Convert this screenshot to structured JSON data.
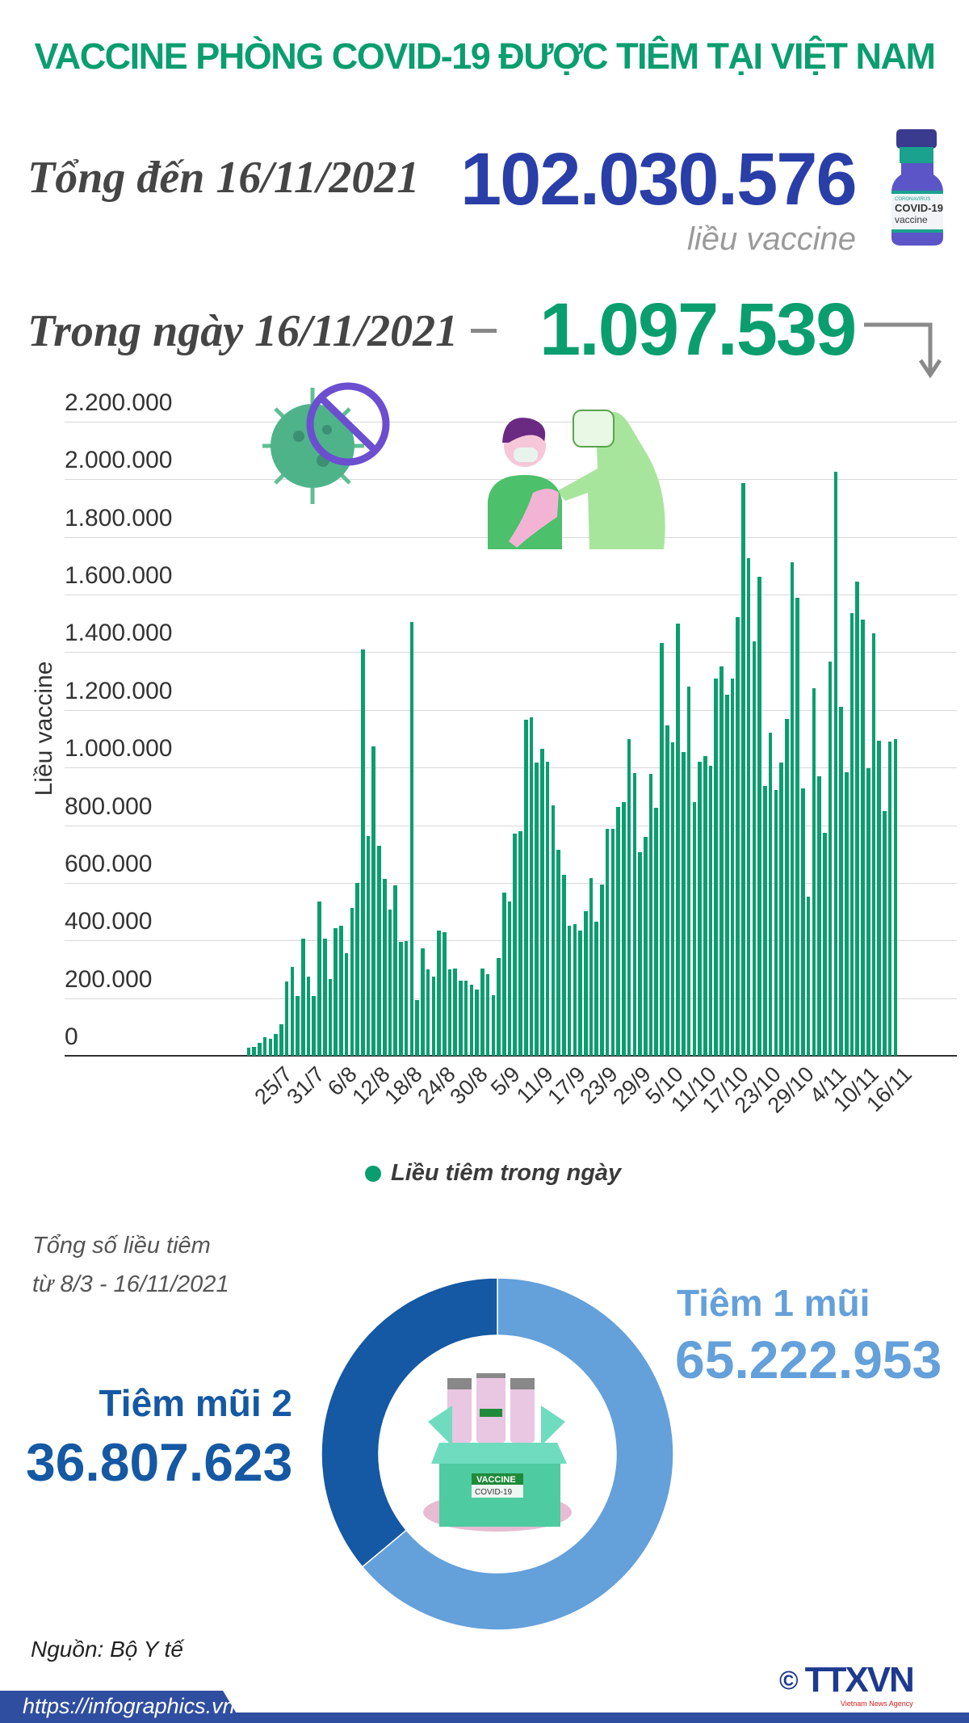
{
  "title": "VACCINE PHÒNG COVID-19 ĐƯỢC TIÊM TẠI VIỆT NAM",
  "total": {
    "label": "Tổng đến 16/11/2021",
    "value": "102.030.576",
    "unit": "liều vaccine"
  },
  "daily": {
    "label": "Trong ngày 16/11/2021",
    "value": "1.097.539"
  },
  "vial_label": {
    "line1": "CORONAVIRUS",
    "line2": "COVID-19",
    "line3": "vaccine"
  },
  "colors": {
    "green": "#0a9e6e",
    "blue_total": "#2a3ea8",
    "dose1": "#64a0da",
    "dose2": "#1558a3",
    "footer": "#2f4ea0"
  },
  "chart_data": [
    {
      "type": "bar",
      "ylabel": "Liều vaccine",
      "ylim": [
        0,
        2200000
      ],
      "yticks": [
        "0",
        "200.000",
        "400.000",
        "600.000",
        "800.000",
        "1.000.000",
        "1.200.000",
        "1.400.000",
        "1.600.000",
        "1.800.000",
        "2.000.000",
        "2.200.000"
      ],
      "ytick_values": [
        0,
        200000,
        400000,
        600000,
        800000,
        1000000,
        1200000,
        1400000,
        1600000,
        1800000,
        2000000,
        2200000
      ],
      "grid": true,
      "legend": "bottom",
      "xticks": [
        "25/7",
        "31/7",
        "6/8",
        "12/8",
        "18/8",
        "24/8",
        "30/8",
        "5/9",
        "11/9",
        "17/9",
        "23/9",
        "29/9",
        "5/10",
        "11/10",
        "17/10",
        "23/10",
        "29/10",
        "4/11",
        "10/11",
        "16/11"
      ],
      "categories": [
        "20/7",
        "21/7",
        "22/7",
        "23/7",
        "24/7",
        "25/7",
        "26/7",
        "27/7",
        "28/7",
        "29/7",
        "30/7",
        "31/7",
        "1/8",
        "2/8",
        "3/8",
        "4/8",
        "5/8",
        "6/8",
        "7/8",
        "8/8",
        "9/8",
        "10/8",
        "11/8",
        "12/8",
        "13/8",
        "14/8",
        "15/8",
        "16/8",
        "17/8",
        "18/8",
        "19/8",
        "20/8",
        "21/8",
        "22/8",
        "23/8",
        "24/8",
        "25/8",
        "26/8",
        "27/8",
        "28/8",
        "29/8",
        "30/8",
        "31/8",
        "1/9",
        "2/9",
        "3/9",
        "4/9",
        "5/9",
        "6/9",
        "7/9",
        "8/9",
        "9/9",
        "10/9",
        "11/9",
        "12/9",
        "13/9",
        "14/9",
        "15/9",
        "16/9",
        "17/9",
        "18/9",
        "19/9",
        "20/9",
        "21/9",
        "22/9",
        "23/9",
        "24/9",
        "25/9",
        "26/9",
        "27/9",
        "28/9",
        "29/9",
        "30/9",
        "1/10",
        "2/10",
        "3/10",
        "4/10",
        "5/10",
        "6/10",
        "7/10",
        "8/10",
        "9/10",
        "10/10",
        "11/10",
        "12/10",
        "13/10",
        "14/10",
        "15/10",
        "16/10",
        "17/10",
        "18/10",
        "19/10",
        "20/10",
        "21/10",
        "22/10",
        "23/10",
        "24/10",
        "25/10",
        "26/10",
        "27/10",
        "28/10",
        "29/10",
        "30/10",
        "31/10",
        "1/11",
        "2/11",
        "3/11",
        "4/11",
        "5/11",
        "6/11",
        "7/11",
        "8/11",
        "9/11",
        "10/11",
        "11/11",
        "12/11",
        "13/11",
        "14/11",
        "15/11",
        "16/11"
      ],
      "series": [
        {
          "name": "Liều tiêm trong ngày",
          "color": "#0a9e6e",
          "values": [
            27000,
            32000,
            44000,
            65000,
            60000,
            76000,
            108000,
            258000,
            307000,
            207000,
            405000,
            276000,
            207000,
            536000,
            405000,
            265000,
            443000,
            452000,
            357000,
            514000,
            599000,
            1409000,
            762000,
            1074000,
            729000,
            614000,
            507000,
            590000,
            396000,
            399000,
            1504000,
            192000,
            373000,
            299000,
            276000,
            433000,
            430000,
            299000,
            302000,
            260000,
            260000,
            246000,
            231000,
            302000,
            284000,
            210000,
            338000,
            567000,
            535000,
            771000,
            779000,
            1166000,
            1173000,
            1018000,
            1065000,
            1021000,
            868000,
            714000,
            628000,
            452000,
            457000,
            433000,
            502000,
            617000,
            465000,
            594000,
            787000,
            787000,
            864000,
            879000,
            1099000,
            982000,
            706000,
            759000,
            977000,
            859000,
            1431000,
            1147000,
            1086000,
            1498000,
            1055000,
            1281000,
            879000,
            1021000,
            1039000,
            1006000,
            1309000,
            1352000,
            1254000,
            1310000,
            1523000,
            1987000,
            1725000,
            1438000,
            1661000,
            935000,
            1120000,
            921000,
            1018000,
            1170000,
            1711000,
            1590000,
            927000,
            553000,
            1276000,
            971000,
            774000,
            1367000,
            2026000,
            1212000,
            985000,
            1535000,
            1646000,
            1512000,
            997000,
            1467000,
            1092000,
            848000,
            1090000,
            1097539
          ]
        }
      ]
    },
    {
      "type": "pie",
      "title": "Tổng số liều tiêm",
      "subtitle": "từ 8/3 - 16/11/2021",
      "slices": [
        {
          "name": "Tiêm 1 mũi",
          "value": 65222953,
          "label": "65.222.953",
          "color": "#64a0da"
        },
        {
          "name": "Tiêm mũi 2",
          "value": 36807623,
          "label": "36.807.623",
          "color": "#1558a3"
        }
      ]
    }
  ],
  "box_label": {
    "top": "VACCINE",
    "bottom": "COVID-19"
  },
  "source": "Nguồn: Bộ Y tế",
  "footer": {
    "url": "https://infographics.vn",
    "logo": "TTXVN",
    "logo_sub": "Vietnam News Agency",
    "copyright": "©"
  }
}
